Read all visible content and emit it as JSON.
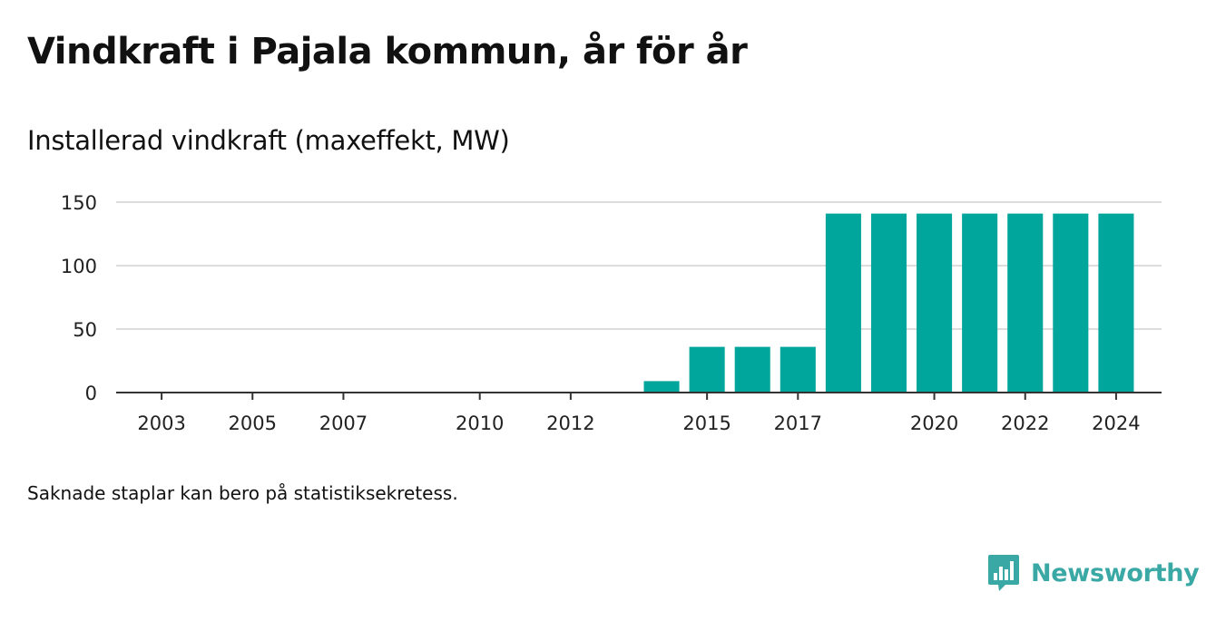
{
  "header": {
    "title": "Vindkraft i Pajala kommun, år för år",
    "subtitle": "Installerad vindkraft (maxeffekt, MW)"
  },
  "footnote": "Saknade staplar kan bero på statistiksekretess.",
  "brand": {
    "name": "Newsworthy",
    "icon": "newsworthy-logo-icon",
    "color": "#3aa8a4"
  },
  "colors": {
    "bar": "#00a59b",
    "grid": "#dddddd",
    "axis": "#333333"
  },
  "chart_data": {
    "type": "bar",
    "x": [
      2014,
      2015,
      2016,
      2017,
      2018,
      2019,
      2020,
      2021,
      2022,
      2023,
      2024
    ],
    "values": [
      9,
      36,
      36,
      36,
      141,
      141,
      141,
      141,
      141,
      141,
      141
    ],
    "xlim": [
      2002,
      2025
    ],
    "ylim": [
      0,
      150
    ],
    "yticks": [
      0,
      50,
      100,
      150
    ],
    "xticks": [
      2003,
      2005,
      2007,
      2010,
      2012,
      2015,
      2017,
      2020,
      2022,
      2024
    ],
    "grid": true,
    "legend": "none"
  }
}
